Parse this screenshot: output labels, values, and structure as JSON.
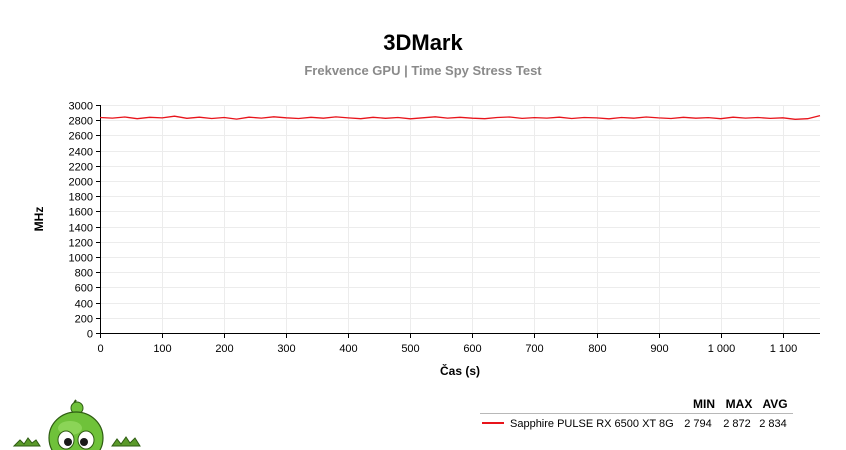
{
  "chart_data": {
    "type": "line",
    "title": "3DMark",
    "subtitle": "Frekvence GPU | Time Spy Stress Test",
    "xlabel": "Čas (s)",
    "ylabel": "MHz",
    "xlim": [
      0,
      1160
    ],
    "ylim": [
      0,
      3000
    ],
    "x_ticks": [
      0,
      100,
      200,
      300,
      400,
      500,
      600,
      700,
      800,
      900,
      1000,
      1100
    ],
    "x_tick_labels": [
      "0",
      "100",
      "200",
      "300",
      "400",
      "500",
      "600",
      "700",
      "800",
      "900",
      "1 000",
      "1 100"
    ],
    "y_ticks": [
      0,
      200,
      400,
      600,
      800,
      1000,
      1200,
      1400,
      1600,
      1800,
      2000,
      2200,
      2400,
      2600,
      2800,
      3000
    ],
    "y_tick_labels": [
      "0",
      "200",
      "400",
      "600",
      "800",
      "1000",
      "1200",
      "1400",
      "1600",
      "1800",
      "2000",
      "2200",
      "2400",
      "2600",
      "2800",
      "3000"
    ],
    "grid": true,
    "series": [
      {
        "name": "Sapphire PULSE RX 6500 XT 8G",
        "color": "#e8141b",
        "min": "2 794",
        "max": "2 872",
        "avg": "2 834",
        "x": [
          0,
          20,
          40,
          60,
          80,
          100,
          120,
          140,
          160,
          180,
          200,
          220,
          240,
          260,
          280,
          300,
          320,
          340,
          360,
          380,
          400,
          420,
          440,
          460,
          480,
          500,
          520,
          540,
          560,
          580,
          600,
          620,
          640,
          660,
          680,
          700,
          720,
          740,
          760,
          780,
          800,
          820,
          840,
          860,
          880,
          900,
          920,
          940,
          960,
          980,
          1000,
          1020,
          1040,
          1060,
          1080,
          1100,
          1120,
          1140,
          1160
        ],
        "y": [
          2835,
          2828,
          2842,
          2820,
          2838,
          2830,
          2852,
          2825,
          2840,
          2822,
          2836,
          2815,
          2840,
          2828,
          2845,
          2832,
          2822,
          2838,
          2826,
          2844,
          2830,
          2820,
          2838,
          2825,
          2835,
          2818,
          2832,
          2845,
          2828,
          2838,
          2826,
          2820,
          2836,
          2842,
          2824,
          2834,
          2828,
          2840,
          2822,
          2835,
          2830,
          2818,
          2836,
          2826,
          2842,
          2830,
          2822,
          2838,
          2826,
          2834,
          2820,
          2840,
          2828,
          2836,
          2824,
          2832,
          2812,
          2820,
          2860
        ]
      }
    ],
    "legend": {
      "placement": "bottom-right",
      "headers": [
        "MIN",
        "MAX",
        "AVG"
      ]
    }
  },
  "mascot": {
    "icon": "green-alien-mascot-icon"
  }
}
